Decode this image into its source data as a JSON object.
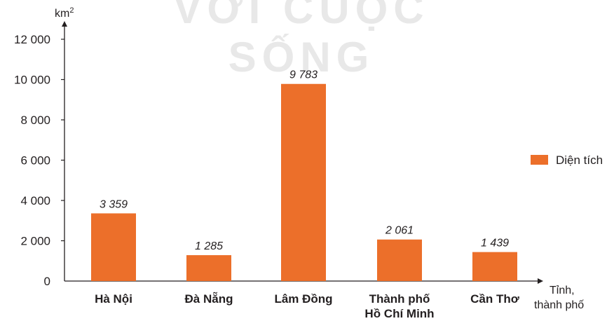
{
  "watermark": "VỚI CUỘC SỐNG",
  "chart_data": {
    "type": "bar",
    "categories": [
      [
        "Hà Nội"
      ],
      [
        "Đà Nẵng"
      ],
      [
        "Lâm Đồng"
      ],
      [
        "Thành phố",
        "Hồ Chí Minh"
      ],
      [
        "Cần Thơ"
      ]
    ],
    "series": [
      {
        "name": "Diện tích",
        "color": "#ec6f2a",
        "values": [
          3359,
          1285,
          9783,
          2061,
          1439
        ],
        "value_labels": [
          "3 359",
          "1 285",
          "9 783",
          "2 061",
          "1 439"
        ]
      }
    ],
    "ylabel": "km",
    "ylabel_sup": "2",
    "xlabel": [
      "Tỉnh,",
      "thành phố"
    ],
    "ylim": [
      0,
      12000
    ],
    "yticks": [
      0,
      2000,
      4000,
      6000,
      8000,
      10000,
      12000
    ],
    "ytick_labels": [
      "0",
      "2 000",
      "4 000",
      "6 000",
      "8 000",
      "10 000",
      "12 000"
    ],
    "legend_position": "right",
    "grid": false
  }
}
